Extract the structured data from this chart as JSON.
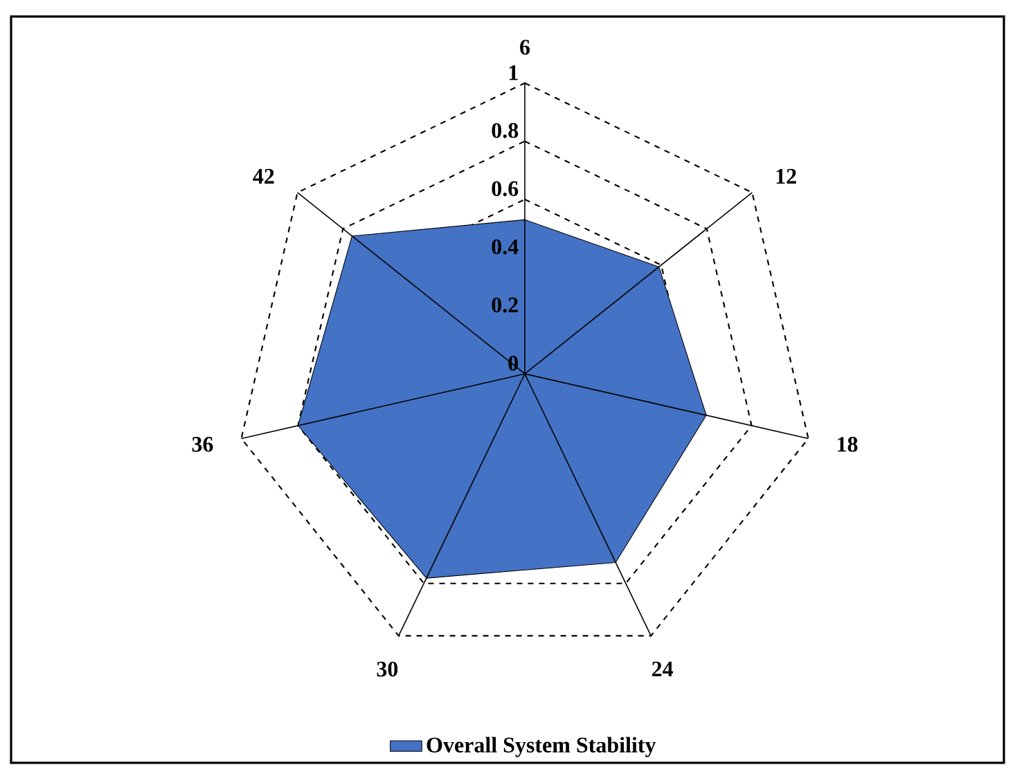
{
  "chart_data": {
    "type": "radar",
    "categories": [
      "6",
      "12",
      "18",
      "24",
      "30",
      "36",
      "42"
    ],
    "series": [
      {
        "name": "Overall System Stability",
        "color": "#4472c4",
        "values": [
          0.53,
          0.59,
          0.64,
          0.72,
          0.78,
          0.8,
          0.76
        ]
      }
    ],
    "ylim": [
      0,
      1
    ],
    "yticks": [
      0,
      0.2,
      0.4,
      0.6,
      0.8,
      1
    ],
    "grid": true,
    "legend": "bottom"
  }
}
